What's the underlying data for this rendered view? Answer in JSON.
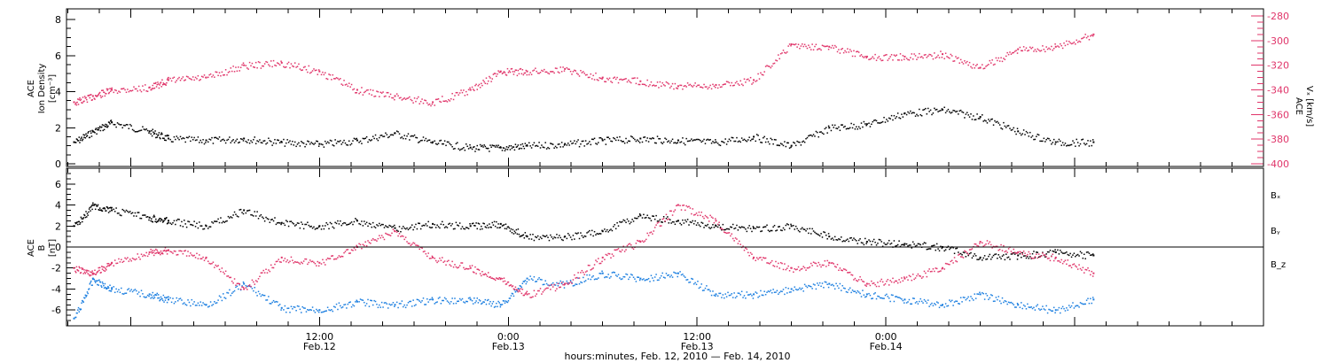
{
  "chart_data": [
    {
      "type": "scatter",
      "panel": "top",
      "left_axis_label": [
        "ACE",
        "Ion Density",
        "[cm⁻³]"
      ],
      "right_axis_label": [
        "ACE",
        "Vₓ [km/s]"
      ],
      "ylim_left": [
        0,
        8
      ],
      "yticks_left": [
        "0",
        "2",
        "4",
        "6",
        "8"
      ],
      "ylim_right": [
        -400,
        -280
      ],
      "yticks_right": [
        "-400",
        "-380",
        "-360",
        "-340",
        "-320",
        "-300",
        "-280"
      ],
      "series": [
        {
          "name_hidden": "density",
          "axis": "left",
          "color": "#000000",
          "x": [
            -0.15,
            -0.1,
            -0.05,
            0.05,
            0.1,
            0.2,
            0.3,
            0.4,
            0.5,
            0.6,
            0.7,
            0.8,
            0.9,
            0.98,
            1.05,
            1.15,
            1.25,
            1.35,
            1.45,
            1.55,
            1.65,
            1.75,
            1.85,
            1.95,
            2.05,
            2.15,
            2.25,
            2.35,
            2.45,
            2.55
          ],
          "y": [
            1.2,
            1.8,
            2.3,
            1.8,
            1.4,
            1.3,
            1.4,
            1.2,
            1.1,
            1.3,
            1.7,
            1.2,
            0.9,
            0.9,
            1.0,
            1.1,
            1.3,
            1.4,
            1.3,
            1.2,
            1.5,
            1.0,
            2.0,
            2.2,
            2.8,
            3.0,
            2.6,
            1.8,
            1.2,
            1.2
          ]
        },
        {
          "name_hidden": "vx",
          "axis": "right",
          "color": "#e0356a",
          "x": [
            -0.15,
            -0.1,
            -0.05,
            0.05,
            0.1,
            0.2,
            0.3,
            0.4,
            0.5,
            0.6,
            0.7,
            0.8,
            0.9,
            0.98,
            1.05,
            1.15,
            1.25,
            1.35,
            1.45,
            1.55,
            1.65,
            1.75,
            1.85,
            1.95,
            2.05,
            2.15,
            2.25,
            2.35,
            2.45,
            2.55
          ],
          "y": [
            -350,
            -345,
            -340,
            -338,
            -332,
            -330,
            -320,
            -318,
            -325,
            -340,
            -345,
            -350,
            -340,
            -325,
            -325,
            -323,
            -330,
            -333,
            -337,
            -336,
            -332,
            -303,
            -305,
            -313,
            -313,
            -311,
            -322,
            -307,
            -305,
            -295
          ]
        }
      ]
    },
    {
      "type": "scatter",
      "panel": "bottom",
      "left_axis_label": [
        "ACE",
        "B",
        "[nT]"
      ],
      "ylim": [
        -7.5,
        7.5
      ],
      "yticks": [
        "-6",
        "-4",
        "-2",
        "0",
        "2",
        "4",
        "6"
      ],
      "series": [
        {
          "name": "Bₓ",
          "color": "#000000",
          "x": [
            -0.15,
            -0.1,
            -0.05,
            0.05,
            0.1,
            0.2,
            0.3,
            0.4,
            0.5,
            0.6,
            0.7,
            0.8,
            0.9,
            0.98,
            1.05,
            1.15,
            1.25,
            1.35,
            1.45,
            1.55,
            1.65,
            1.75,
            1.85,
            1.95,
            2.05,
            2.15,
            2.25,
            2.35,
            2.45,
            2.55
          ],
          "y": [
            2.0,
            4.0,
            3.5,
            2.8,
            2.5,
            2.0,
            3.5,
            2.3,
            2.0,
            2.5,
            1.8,
            2.2,
            2.0,
            2.2,
            1.0,
            1.0,
            1.5,
            3.0,
            2.5,
            2.0,
            1.8,
            2.0,
            1.0,
            0.5,
            0.3,
            0.0,
            -1.0,
            -0.8,
            -0.5,
            -0.8
          ]
        },
        {
          "name": "Bᵧ",
          "color": "#1c7fe0",
          "x": [
            -0.15,
            -0.1,
            -0.05,
            0.05,
            0.1,
            0.2,
            0.3,
            0.4,
            0.5,
            0.6,
            0.7,
            0.8,
            0.9,
            0.98,
            1.05,
            1.15,
            1.25,
            1.35,
            1.45,
            1.55,
            1.65,
            1.75,
            1.85,
            1.95,
            2.05,
            2.15,
            2.25,
            2.35,
            2.45,
            2.55
          ],
          "y": [
            -6.8,
            -3.0,
            -4.0,
            -4.5,
            -5.0,
            -5.5,
            -3.5,
            -5.8,
            -6.0,
            -5.2,
            -5.5,
            -5.0,
            -5.0,
            -5.5,
            -3.0,
            -3.5,
            -2.5,
            -3.0,
            -2.5,
            -4.5,
            -4.5,
            -4.0,
            -3.5,
            -4.5,
            -5.0,
            -5.5,
            -4.5,
            -5.5,
            -6.0,
            -5.0
          ]
        },
        {
          "name": "B_z",
          "color": "#e0356a",
          "x": [
            -0.15,
            -0.1,
            -0.05,
            0.05,
            0.1,
            0.2,
            0.3,
            0.4,
            0.5,
            0.6,
            0.7,
            0.8,
            0.9,
            0.98,
            1.05,
            1.15,
            1.25,
            1.35,
            1.45,
            1.55,
            1.65,
            1.75,
            1.85,
            1.95,
            2.05,
            2.15,
            2.25,
            2.35,
            2.45,
            2.55
          ],
          "y": [
            -2.0,
            -2.5,
            -1.5,
            -0.5,
            -0.3,
            -1.0,
            -4.0,
            -1.0,
            -1.5,
            0.0,
            1.5,
            -1.0,
            -2.0,
            -3.0,
            -4.5,
            -3.5,
            -1.0,
            0.5,
            4.0,
            2.5,
            -1.0,
            -2.0,
            -1.5,
            -3.5,
            -3.0,
            -2.0,
            0.5,
            -0.5,
            -1.0,
            -2.5
          ]
        }
      ]
    }
  ],
  "x_axis": {
    "tick_labels": [
      {
        "time": "12:00",
        "date": "Feb.12",
        "day": 0.5
      },
      {
        "time": "0:00",
        "date": "Feb.13",
        "day": 1.0
      },
      {
        "time": "12:00",
        "date": "Feb.13",
        "day": 1.5
      },
      {
        "time": "0:00",
        "date": "Feb.14",
        "day": 2.0
      }
    ],
    "title": "hours:minutes, Feb. 12, 2010 — Feb. 14, 2010",
    "range_days": [
      -0.17,
      3.0
    ]
  },
  "colors": {
    "black": "#000000",
    "pink": "#e0356a",
    "blue": "#1c7fe0"
  }
}
